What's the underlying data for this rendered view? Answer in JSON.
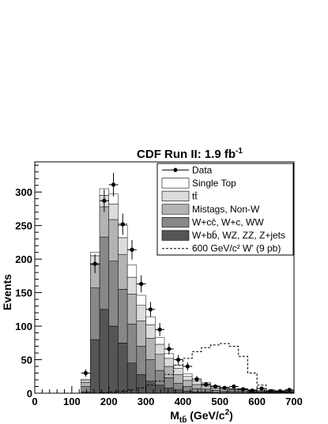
{
  "chart_data": {
    "type": "bar",
    "title": "CDF Run II: 1.9 fb",
    "title_sup": "-1",
    "ylabel": "Events",
    "xlabel": {
      "main": "M",
      "sub": "tb̄",
      "unit": " (GeV/c",
      "unit_sup": "2",
      "close": ")"
    },
    "xlim": [
      0,
      700
    ],
    "ylim": [
      0,
      345
    ],
    "x_ticks": [
      0,
      100,
      200,
      300,
      400,
      500,
      600,
      700
    ],
    "y_ticks": [
      0,
      50,
      100,
      150,
      200,
      250,
      300
    ],
    "bin_width": 25,
    "bin_edges_start": 100,
    "stacked_series": [
      {
        "name": "W+bb̄, WZ, ZZ, Z+jets",
        "color": "#555555",
        "values": [
          0,
          2,
          80,
          125,
          100,
          75,
          45,
          28,
          18,
          12,
          8,
          5,
          3,
          2,
          2,
          1,
          1,
          1,
          1,
          1,
          1,
          1,
          1,
          1
        ]
      },
      {
        "name": "W+cc̄, W+c, WW",
        "color": "#888888",
        "values": [
          0,
          8,
          77,
          108,
          97,
          80,
          58,
          42,
          32,
          22,
          15,
          10,
          7,
          5,
          4,
          3,
          2,
          2,
          2,
          1,
          1,
          1,
          1,
          1
        ]
      },
      {
        "name": "Mistags, Non-W",
        "color": "#b3b3b3",
        "values": [
          0,
          6,
          35,
          45,
          62,
          52,
          45,
          38,
          32,
          24,
          17,
          13,
          9,
          6,
          5,
          4,
          3,
          2,
          2,
          1,
          1,
          1,
          1,
          1
        ]
      },
      {
        "name": "tt̄",
        "color": "#dcdcdc",
        "values": [
          0,
          3,
          13,
          17,
          23,
          25,
          25,
          23,
          20,
          15,
          12,
          9,
          6,
          5,
          3,
          2,
          2,
          1,
          1,
          1,
          1,
          1,
          1,
          1
        ]
      },
      {
        "name": "Single Top",
        "color": "#ffffff",
        "values": [
          0,
          2,
          5,
          10,
          15,
          18,
          18,
          15,
          12,
          10,
          7,
          5,
          4,
          3,
          2,
          1,
          1,
          1,
          1,
          1,
          0,
          0,
          0,
          0
        ]
      }
    ],
    "signal": {
      "name": "600 GeV/c",
      "name_sup": "2",
      "name_tail": " W' (9 pb)",
      "values": [
        0,
        0,
        0,
        1,
        2,
        3,
        5,
        8,
        12,
        18,
        28,
        42,
        52,
        62,
        68,
        72,
        74,
        70,
        55,
        30,
        12,
        5,
        2,
        1
      ]
    },
    "data_points": {
      "name": "Data",
      "x": [
        112.5,
        137.5,
        162.5,
        187.5,
        212.5,
        237.5,
        262.5,
        287.5,
        312.5,
        337.5,
        362.5,
        387.5,
        412.5,
        437.5,
        462.5,
        487.5,
        512.5,
        537.5,
        562.5,
        587.5,
        612.5,
        637.5,
        662.5,
        687.5
      ],
      "y": [
        0,
        30,
        193,
        287,
        311,
        252,
        214,
        163,
        125,
        95,
        66,
        50,
        40,
        21,
        13,
        10,
        8,
        10,
        6,
        4,
        7,
        3,
        3,
        5
      ]
    },
    "legend": {
      "position": "top-right",
      "entries": [
        {
          "label": "Data",
          "kind": "marker"
        },
        {
          "label": "Single Top",
          "kind": "box",
          "color": "#ffffff"
        },
        {
          "label": "tt̄",
          "kind": "box",
          "color": "#dcdcdc"
        },
        {
          "label": "Mistags, Non-W",
          "kind": "box",
          "color": "#b3b3b3"
        },
        {
          "label": "W+cc̄, W+c, WW",
          "kind": "box",
          "color": "#888888"
        },
        {
          "label": "W+bb̄, WZ, ZZ, Z+jets",
          "kind": "box",
          "color": "#555555"
        },
        {
          "label": "600 GeV/c² W' (9 pb)",
          "kind": "dashed"
        }
      ]
    }
  }
}
